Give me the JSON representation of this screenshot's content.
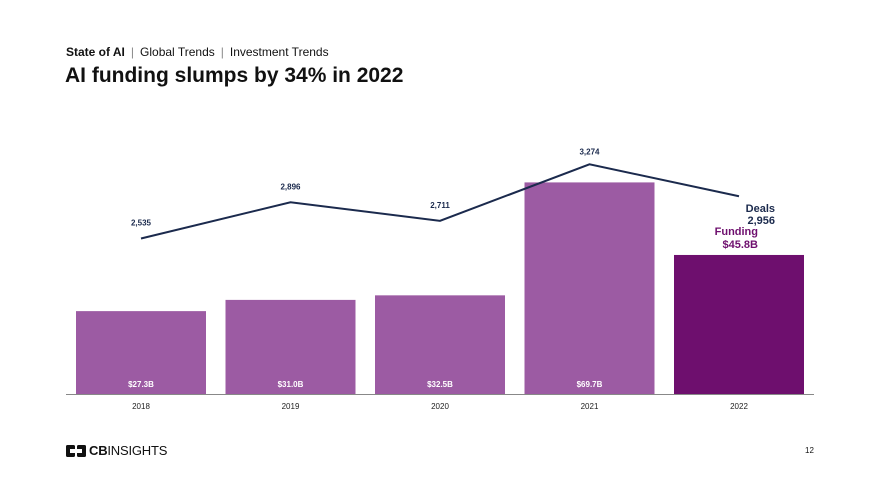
{
  "header": {
    "breadcrumb": [
      "State of AI",
      "Global Trends",
      "Investment Trends"
    ],
    "title": "AI funding slumps by 34% in 2022"
  },
  "chart_data": {
    "type": "bar",
    "title": "AI funding slumps by 34% in 2022",
    "categories": [
      "2018",
      "2019",
      "2020",
      "2021",
      "2022"
    ],
    "series": [
      {
        "name": "Funding",
        "type": "bar",
        "values": [
          27.3,
          31.0,
          32.5,
          69.7,
          45.8
        ],
        "labels": [
          "$27.3B",
          "$31.0B",
          "$32.5B",
          "$69.7B",
          "$45.8B"
        ],
        "color": "#9c5ba3",
        "highlight_color": "#6e0f6e"
      },
      {
        "name": "Deals",
        "type": "line",
        "values": [
          2535,
          2896,
          2711,
          3274,
          2956
        ],
        "labels": [
          "2,535",
          "2,896",
          "2,711",
          "3,274",
          "2,956"
        ],
        "color": "#1b2a4d"
      }
    ],
    "ylim_funding": [
      0,
      70
    ],
    "ylim_deals": [
      0,
      3300
    ],
    "grid": false
  },
  "footer": {
    "logo_text_bold": "CB",
    "logo_text": "INSIGHTS",
    "page_number": "12"
  }
}
